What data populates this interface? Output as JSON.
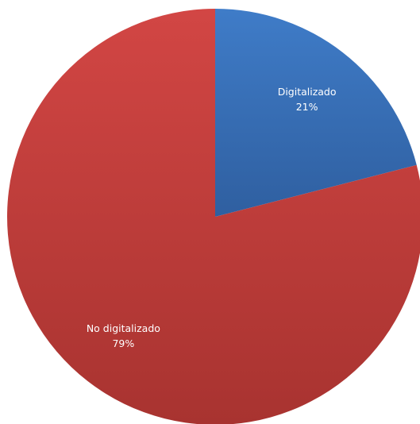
{
  "chart_data": {
    "type": "pie",
    "start_angle_deg": 0,
    "direction": "clockwise",
    "slices": [
      {
        "label": "Digitalizado",
        "percent_label": "21%",
        "value": 21,
        "color": "#3F7CC8",
        "color_dark": "#2F5FA0"
      },
      {
        "label": "No digitalizado",
        "percent_label": "79%",
        "value": 79,
        "color": "#D24644",
        "color_dark": "#A83330"
      }
    ]
  }
}
